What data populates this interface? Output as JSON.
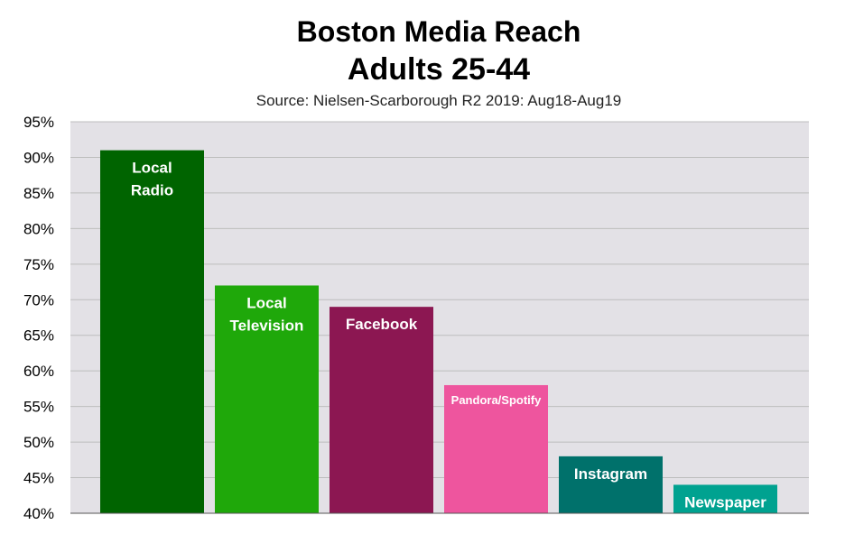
{
  "chart_data": {
    "type": "bar",
    "title": "Boston Media Reach",
    "subtitle": "Adults 25-44",
    "source": "Source: Nielsen-Scarborough R2 2019: Aug18-Aug19",
    "ylim": [
      40,
      95
    ],
    "ytick_step": 5,
    "ytick_labels": [
      "95%",
      "90%",
      "85%",
      "80%",
      "75%",
      "70%",
      "65%",
      "60%",
      "55%",
      "50%",
      "45%",
      "40%"
    ],
    "grid": true,
    "categories": [
      "Local Radio",
      "Local Television",
      "Facebook",
      "Pandora/Spotify",
      "Instagram",
      "Newspaper"
    ],
    "label_lines": [
      [
        "Local",
        "Radio"
      ],
      [
        "Local",
        "Television"
      ],
      [
        "Facebook"
      ],
      [
        "Pandora/Spotify"
      ],
      [
        "Instagram"
      ],
      [
        "Newspaper"
      ]
    ],
    "values": [
      91,
      72,
      69,
      58,
      48,
      44
    ],
    "colors": [
      "#006400",
      "#1fa80a",
      "#8c1752",
      "#ee559e",
      "#00716b",
      "#00a290"
    ],
    "plot_background": "#e3e1e6",
    "grid_color": "#bdbdbd"
  }
}
